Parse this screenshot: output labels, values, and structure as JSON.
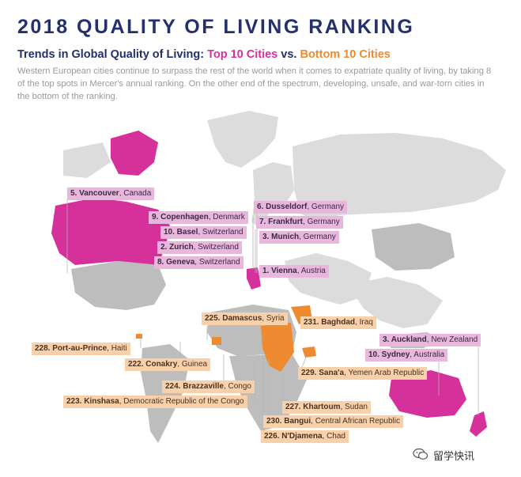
{
  "header": {
    "title": "2018 QUALITY OF LIVING RANKING",
    "subtitle_lead": "Trends in Global Quality of Living: ",
    "subtitle_top": "Top 10 Cities",
    "subtitle_vs": " vs. ",
    "subtitle_bottom": "Bottom 10 Cities",
    "intro": "Western European cities continue to surpass the rest of the world when it comes to expatriate quality of living, by taking 8 of the top spots in Mercer's annual ranking. On the other end of the spectrum, developing, unsafe, and war-torn cities in the bottom of the ranking."
  },
  "colors": {
    "top_highlight": "#d6309a",
    "bottom_highlight": "#ee8a2f",
    "top_label_bg": "#e9b6dc",
    "bottom_label_bg": "#f8d1ab",
    "land": "#d9d9d9",
    "title": "#23306b"
  },
  "top_cities": [
    {
      "city": "5. Vancouver",
      "country": ", Canada"
    },
    {
      "city": "9. Copenhagen",
      "country": ", Denmark"
    },
    {
      "city": "10. Basel",
      "country": ", Switzerland"
    },
    {
      "city": "2. Zurich",
      "country": ", Switzerland"
    },
    {
      "city": "8. Geneva",
      "country": ", Switzerland"
    },
    {
      "city": "6. Dusseldorf",
      "country": ", Germany"
    },
    {
      "city": "7. Frankfurt",
      "country": ", Germany"
    },
    {
      "city": "3. Munich",
      "country": ", Germany"
    },
    {
      "city": "1. Vienna",
      "country": ", Austria"
    },
    {
      "city": "3. Auckland",
      "country": ", New Zealand"
    },
    {
      "city": "10. Sydney",
      "country": ", Australia"
    }
  ],
  "bottom_cities": [
    {
      "city": "225. Damascus",
      "country": ", Syria"
    },
    {
      "city": "231. Baghdad",
      "country": ", Iraq"
    },
    {
      "city": "228. Port-au-Prince",
      "country": ", Haiti"
    },
    {
      "city": "222. Conakry",
      "country": ", Guinea"
    },
    {
      "city": "229. Sana'a",
      "country": ", Yemen Arab Republic"
    },
    {
      "city": "224. Brazzaville",
      "country": ", Congo"
    },
    {
      "city": "223. Kinshasa",
      "country": ", Democratic Republic of the Congo"
    },
    {
      "city": "227. Khartoum",
      "country": ", Sudan"
    },
    {
      "city": "230. Bangui",
      "country": ", Central African Republic"
    },
    {
      "city": "226. N'Djamena",
      "country": ", Chad"
    }
  ],
  "watermark": {
    "text": "留学快讯",
    "icon": "wechat-icon"
  }
}
